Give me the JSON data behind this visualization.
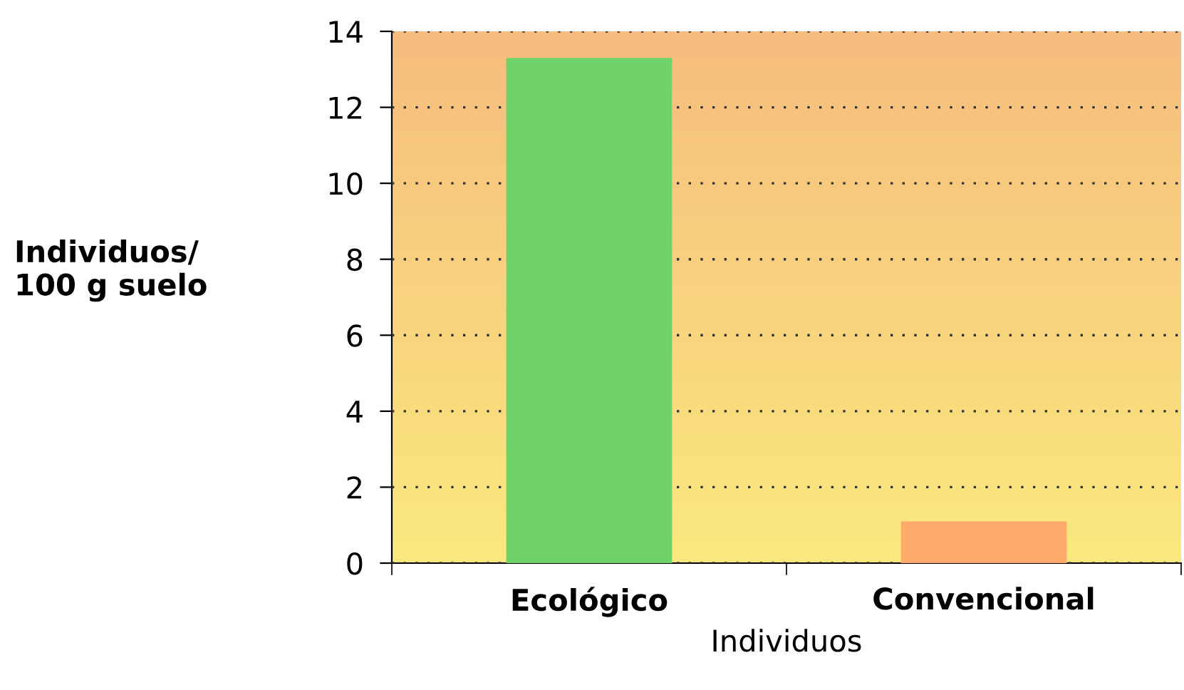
{
  "chart_data": {
    "type": "bar",
    "categories": [
      "Ecológico",
      "Convencional"
    ],
    "values": [
      13.3,
      1.1
    ],
    "colors": [
      "#6fd36a",
      "#ffaa6a"
    ],
    "ylim": [
      0,
      14
    ],
    "yticks": [
      0,
      2,
      4,
      6,
      8,
      10,
      12,
      14
    ],
    "ylabel": "Individuos/\n100 g suelo",
    "xlabel": "Individuos",
    "grid": "y",
    "legend": false
  }
}
